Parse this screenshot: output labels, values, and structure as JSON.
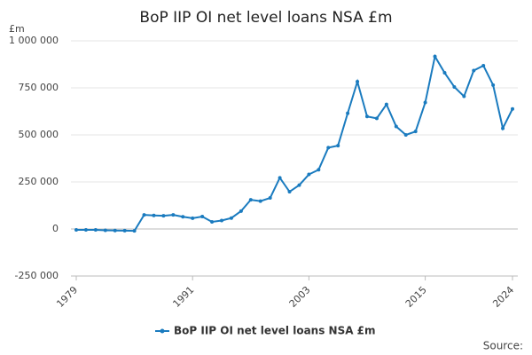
{
  "chart_data": {
    "type": "line",
    "title": "BoP IIP OI net level loans NSA £m",
    "y_unit": "£m",
    "source": "Source:",
    "x": [
      1979,
      1980,
      1981,
      1982,
      1983,
      1984,
      1985,
      1986,
      1987,
      1988,
      1989,
      1990,
      1991,
      1992,
      1993,
      1994,
      1995,
      1996,
      1997,
      1998,
      1999,
      2000,
      2001,
      2002,
      2003,
      2004,
      2005,
      2006,
      2007,
      2008,
      2009,
      2010,
      2011,
      2012,
      2013,
      2014,
      2015,
      2016,
      2017,
      2018,
      2019,
      2020,
      2021,
      2022,
      2023,
      2024
    ],
    "series": [
      {
        "name": "BoP IIP OI net level loans NSA £m",
        "color": "#1a7bbf",
        "values": [
          -5000,
          -5000,
          -5000,
          -7000,
          -8000,
          -9000,
          -10000,
          75000,
          72000,
          70000,
          75000,
          65000,
          57000,
          66000,
          38000,
          45000,
          58000,
          95000,
          155000,
          148000,
          165000,
          272000,
          198000,
          233000,
          290000,
          315000,
          432000,
          443000,
          615000,
          783000,
          598000,
          588000,
          662000,
          545000,
          500000,
          518000,
          672000,
          917000,
          830000,
          755000,
          705000,
          842000,
          868000,
          765000,
          535000,
          638000
        ]
      }
    ],
    "xlim": [
      1979,
      2024
    ],
    "xticks": [
      1979,
      1991,
      2003,
      2015,
      2024
    ],
    "ylim": [
      -250000,
      1000000
    ],
    "yticks": [
      {
        "value": -250000,
        "label": "-250 000"
      },
      0,
      {
        "value": 250000,
        "label": "250 000"
      },
      {
        "value": 500000,
        "label": "500 000"
      },
      {
        "value": 750000,
        "label": "750 000"
      },
      {
        "value": 1000000,
        "label": "1 000 000"
      }
    ],
    "grid": true,
    "legend": "bottom"
  }
}
